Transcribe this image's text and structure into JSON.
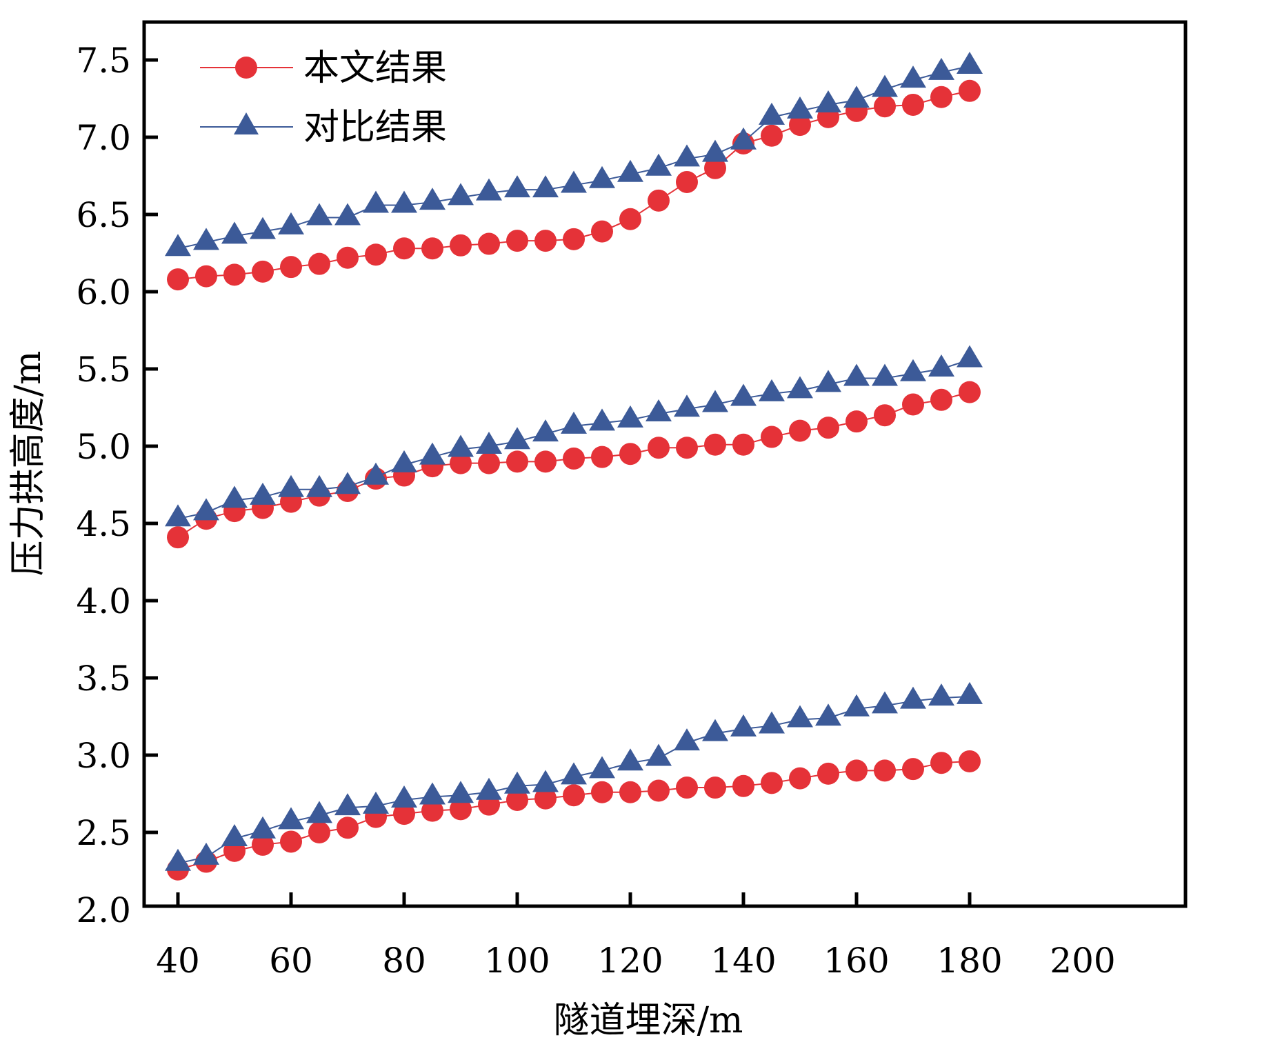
{
  "chart_data": {
    "type": "line",
    "title": "",
    "xlabel": "隧道埋深/m",
    "ylabel": "压力拱高度/m",
    "xlim": [
      34,
      200
    ],
    "ylim": [
      2.0,
      7.75
    ],
    "xticks": [
      40,
      60,
      80,
      100,
      120,
      140,
      160,
      180,
      200
    ],
    "yticks": [
      2.0,
      2.5,
      3.0,
      3.5,
      4.0,
      4.5,
      5.0,
      5.5,
      6.0,
      6.5,
      7.0,
      7.5
    ],
    "ytick_labels": [
      "2.0",
      "2.5",
      "3.0",
      "3.5",
      "4.0",
      "4.5",
      "5.0",
      "5.5",
      "6.0",
      "6.5",
      "7.0",
      "7.5"
    ],
    "grid": false,
    "legend_position": "top-left",
    "x": [
      40,
      45,
      50,
      55,
      60,
      65,
      70,
      75,
      80,
      85,
      90,
      95,
      100,
      105,
      110,
      115,
      120,
      125,
      130,
      135,
      140,
      145,
      150,
      155,
      160,
      165,
      170,
      175,
      180
    ],
    "legend": [
      {
        "name": "本文结果",
        "color": "#E53238",
        "marker": "circle"
      },
      {
        "name": "对比结果",
        "color": "#3C5A98",
        "marker": "triangle"
      }
    ],
    "series": [
      {
        "name": "本文结果",
        "group": "upper",
        "color": "#E53238",
        "marker": "circle",
        "values": [
          6.08,
          6.1,
          6.11,
          6.13,
          6.16,
          6.18,
          6.22,
          6.24,
          6.28,
          6.28,
          6.3,
          6.31,
          6.33,
          6.33,
          6.34,
          6.39,
          6.47,
          6.59,
          6.71,
          6.8,
          6.96,
          7.01,
          7.08,
          7.13,
          7.17,
          7.2,
          7.21,
          7.26,
          7.3
        ]
      },
      {
        "name": "对比结果",
        "group": "upper",
        "color": "#3C5A98",
        "marker": "triangle",
        "values": [
          6.28,
          6.32,
          6.36,
          6.39,
          6.42,
          6.48,
          6.48,
          6.56,
          6.56,
          6.58,
          6.61,
          6.64,
          6.66,
          6.66,
          6.69,
          6.72,
          6.76,
          6.8,
          6.86,
          6.89,
          6.97,
          7.13,
          7.17,
          7.21,
          7.24,
          7.31,
          7.37,
          7.42,
          7.46
        ]
      },
      {
        "name": "本文结果",
        "group": "middle",
        "color": "#E53238",
        "marker": "circle",
        "values": [
          4.41,
          4.53,
          4.58,
          4.6,
          4.64,
          4.68,
          4.71,
          4.79,
          4.81,
          4.87,
          4.89,
          4.89,
          4.9,
          4.9,
          4.92,
          4.93,
          4.95,
          4.99,
          4.99,
          5.01,
          5.01,
          5.06,
          5.1,
          5.12,
          5.16,
          5.2,
          5.27,
          5.3,
          5.35
        ]
      },
      {
        "name": "对比结果",
        "group": "middle",
        "color": "#3C5A98",
        "marker": "triangle",
        "values": [
          4.53,
          4.57,
          4.65,
          4.67,
          4.72,
          4.72,
          4.74,
          4.8,
          4.88,
          4.93,
          4.98,
          5.0,
          5.03,
          5.08,
          5.13,
          5.15,
          5.17,
          5.21,
          5.24,
          5.27,
          5.31,
          5.34,
          5.36,
          5.4,
          5.44,
          5.44,
          5.47,
          5.5,
          5.56
        ]
      },
      {
        "name": "本文结果",
        "group": "lower",
        "color": "#E53238",
        "marker": "circle",
        "values": [
          2.26,
          2.31,
          2.38,
          2.42,
          2.44,
          2.5,
          2.53,
          2.6,
          2.62,
          2.64,
          2.65,
          2.68,
          2.71,
          2.72,
          2.74,
          2.76,
          2.76,
          2.77,
          2.79,
          2.79,
          2.8,
          2.82,
          2.85,
          2.88,
          2.9,
          2.9,
          2.91,
          2.95,
          2.96
        ]
      },
      {
        "name": "对比结果",
        "group": "lower",
        "color": "#3C5A98",
        "marker": "triangle",
        "values": [
          2.3,
          2.34,
          2.46,
          2.51,
          2.57,
          2.61,
          2.66,
          2.67,
          2.71,
          2.73,
          2.74,
          2.76,
          2.8,
          2.81,
          2.86,
          2.9,
          2.95,
          2.98,
          3.08,
          3.14,
          3.17,
          3.19,
          3.23,
          3.24,
          3.3,
          3.32,
          3.35,
          3.37,
          3.38
        ]
      }
    ]
  }
}
